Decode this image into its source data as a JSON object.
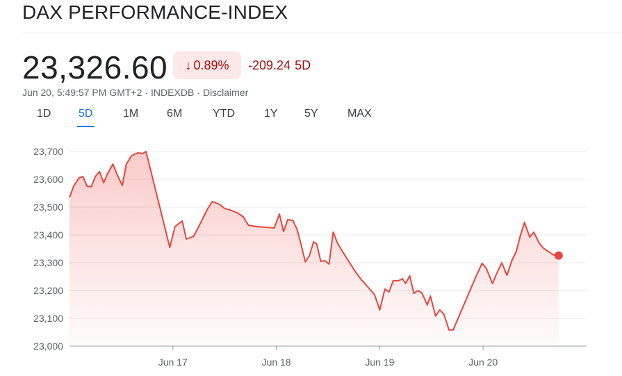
{
  "header": {
    "title": "DAX PERFORMANCE-INDEX"
  },
  "quote": {
    "price": "23,326.60",
    "percent_change": "0.89%",
    "abs_change": "-209.24",
    "range_label": "5D",
    "timestamp": "Jun 20, 5:49:57 PM GMT+2",
    "source": "INDEXDB",
    "disclaimer": "Disclaimer"
  },
  "tabs": [
    {
      "label": "1D",
      "active": false
    },
    {
      "label": "5D",
      "active": true
    },
    {
      "label": "1M",
      "active": false
    },
    {
      "label": "6M",
      "active": false
    },
    {
      "label": "YTD",
      "active": false
    },
    {
      "label": "1Y",
      "active": false
    },
    {
      "label": "5Y",
      "active": false
    },
    {
      "label": "MAX",
      "active": false
    }
  ],
  "colors": {
    "line": "#e8453c",
    "negative": "#a50e0e",
    "badge_bg": "#fce8e6",
    "active_tab": "#1a73e8"
  },
  "icons": {
    "change_direction": "arrow-down-icon"
  },
  "chart_data": {
    "type": "area",
    "ylim": [
      23000,
      23700
    ],
    "yticks": [
      23000,
      23100,
      23200,
      23300,
      23400,
      23500,
      23600,
      23700
    ],
    "ytick_labels": [
      "23,000",
      "23,100",
      "23,200",
      "23,300",
      "23,400",
      "23,500",
      "23,600",
      "23,700"
    ],
    "xtick_labels": [
      "Jun 17",
      "Jun 18",
      "Jun 19",
      "Jun 20"
    ],
    "xtick_positions": [
      1,
      2,
      3,
      4
    ],
    "xlim": [
      0,
      5
    ],
    "series": [
      {
        "x": [
          0.0,
          0.04,
          0.09,
          0.13,
          0.17,
          0.21,
          0.25,
          0.29,
          0.33,
          0.37,
          0.42,
          0.46,
          0.51,
          0.55,
          0.6,
          0.66,
          0.71,
          0.74,
          0.97,
          1.02,
          1.09,
          1.13,
          1.2,
          1.25,
          1.33,
          1.38,
          1.45,
          1.5,
          1.55,
          1.62,
          1.68,
          1.73,
          1.81,
          1.98,
          2.03,
          2.07,
          2.11,
          2.16,
          2.2,
          2.24,
          2.28,
          2.32,
          2.36,
          2.39,
          2.43,
          2.47,
          2.51,
          2.55,
          2.59,
          2.64,
          2.7,
          2.76,
          2.82,
          2.88,
          2.95,
          3.0,
          3.05,
          3.09,
          3.13,
          3.18,
          3.22,
          3.25,
          3.29,
          3.33,
          3.37,
          3.41,
          3.46,
          3.49,
          3.54,
          3.58,
          3.62,
          3.67,
          3.71,
          3.93,
          3.99,
          4.03,
          4.09,
          4.13,
          4.18,
          4.23,
          4.28,
          4.32,
          4.36,
          4.4,
          4.45,
          4.49,
          4.54,
          4.58,
          4.62,
          4.68,
          4.73
        ],
        "y": [
          23535,
          23575,
          23605,
          23610,
          23575,
          23573,
          23610,
          23628,
          23588,
          23622,
          23655,
          23618,
          23578,
          23655,
          23685,
          23695,
          23693,
          23700,
          23355,
          23430,
          23450,
          23385,
          23395,
          23430,
          23490,
          23520,
          23510,
          23495,
          23490,
          23480,
          23465,
          23435,
          23430,
          23425,
          23475,
          23412,
          23455,
          23452,
          23420,
          23365,
          23303,
          23325,
          23375,
          23368,
          23305,
          23307,
          23295,
          23410,
          23372,
          23340,
          23305,
          23270,
          23240,
          23215,
          23185,
          23130,
          23205,
          23195,
          23235,
          23235,
          23242,
          23225,
          23253,
          23190,
          23200,
          23190,
          23148,
          23180,
          23108,
          23130,
          23115,
          23058,
          23058,
          23250,
          23298,
          23280,
          23225,
          23260,
          23300,
          23255,
          23310,
          23340,
          23398,
          23445,
          23392,
          23410,
          23372,
          23353,
          23343,
          23328,
          23326
        ]
      }
    ]
  }
}
